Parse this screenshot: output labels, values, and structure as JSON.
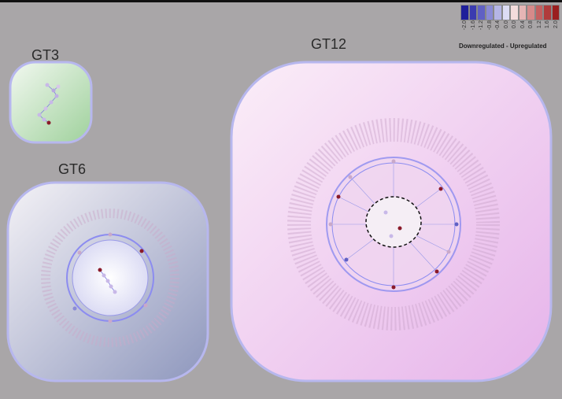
{
  "groups": [
    {
      "id": "gt3",
      "label": "GT3"
    },
    {
      "id": "gt6",
      "label": "GT6"
    },
    {
      "id": "gt12",
      "label": "GT12"
    }
  ],
  "legend": {
    "ticks": [
      "-2.0",
      "-1.6",
      "-1.2",
      "-0.8",
      "-0.4",
      "0.0",
      "0.0",
      "0.4",
      "0.8",
      "1.2",
      "1.6",
      "2.0"
    ],
    "colors": [
      "#1f1f9a",
      "#3b3bb0",
      "#6060c4",
      "#8a8ad6",
      "#b5b5e6",
      "#dcdcf4",
      "#f4dcdc",
      "#e6b5b5",
      "#d68a8a",
      "#c46060",
      "#b03b3b",
      "#9a1f1f"
    ],
    "caption": "Downregulated - Upregulated"
  }
}
